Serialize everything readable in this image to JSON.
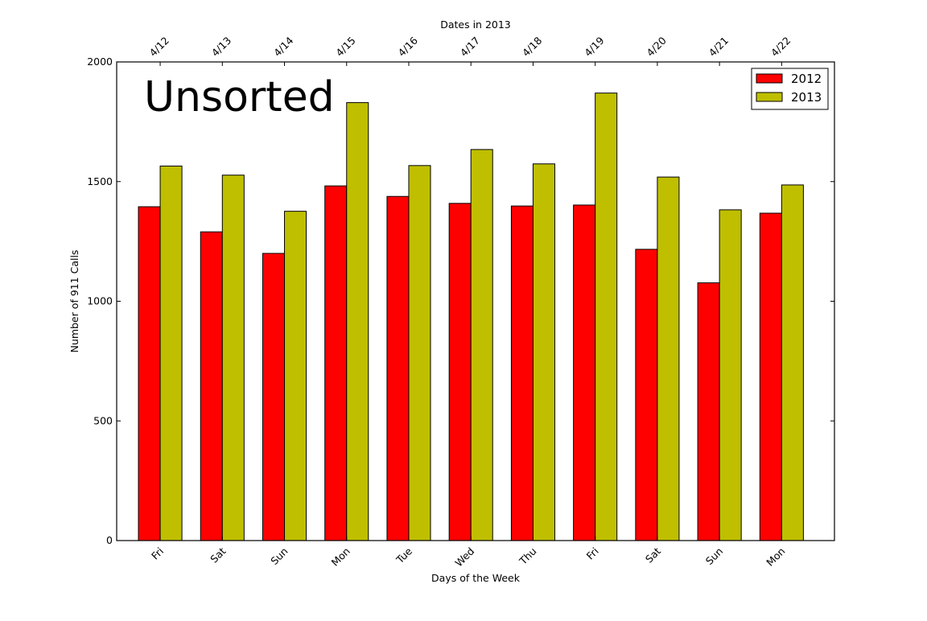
{
  "chart_data": {
    "type": "bar",
    "annotation": "Unsorted",
    "xlabel": "Days of the Week",
    "ylabel": "Number of 911 Calls",
    "top_xlabel": "Dates in 2013",
    "categories": [
      "Fri",
      "Sat",
      "Sun",
      "Mon",
      "Tue",
      "Wed",
      "Thu",
      "Fri",
      "Sat",
      "Sun",
      "Mon"
    ],
    "top_categories": [
      "4/12",
      "4/13",
      "4/14",
      "4/15",
      "4/16",
      "4/17",
      "4/18",
      "4/19",
      "4/20",
      "4/21",
      "4/22"
    ],
    "series": [
      {
        "name": "2012",
        "color": "#ff0000",
        "values": [
          1395,
          1290,
          1200,
          1482,
          1438,
          1409,
          1398,
          1402,
          1217,
          1077,
          1368
        ]
      },
      {
        "name": "2013",
        "color": "#bfbf00",
        "values": [
          1565,
          1527,
          1376,
          1830,
          1567,
          1634,
          1574,
          1870,
          1519,
          1382,
          1486
        ]
      }
    ],
    "ylim": [
      0,
      2000
    ],
    "yticks": [
      "0",
      "500",
      "1000",
      "1500",
      "2000"
    ],
    "legend_position": "top-right",
    "grid": false
  }
}
